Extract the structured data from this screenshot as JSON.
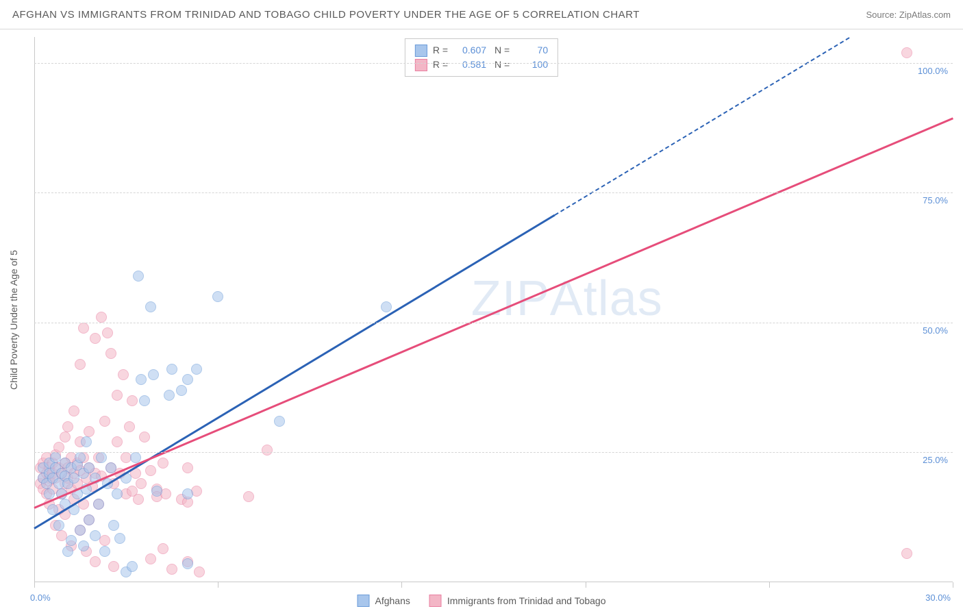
{
  "header": {
    "title": "AFGHAN VS IMMIGRANTS FROM TRINIDAD AND TOBAGO CHILD POVERTY UNDER THE AGE OF 5 CORRELATION CHART",
    "source": "Source: ZipAtlas.com"
  },
  "chart": {
    "type": "scatter",
    "ylabel": "Child Poverty Under the Age of 5",
    "watermark_a": "ZIP",
    "watermark_b": "Atlas",
    "xlim": [
      0,
      30
    ],
    "ylim": [
      0,
      105
    ],
    "x_ticks": [
      0,
      6,
      12,
      18,
      24,
      30
    ],
    "x_tick_labels": {
      "0": "0.0%",
      "30": "30.0%"
    },
    "y_gridlines": [
      25,
      50,
      75,
      100
    ],
    "y_tick_labels": {
      "25": "25.0%",
      "50": "50.0%",
      "75": "75.0%",
      "100": "100.0%"
    },
    "background_color": "#ffffff",
    "grid_color": "#d5d5d5",
    "axis_label_color": "#5b8fd6",
    "label_fontsize": 13,
    "series": [
      {
        "name": "Afghans",
        "fill": "#a8c6ec",
        "stroke": "#6a9bd8",
        "fill_opacity": 0.55,
        "marker_r": 7,
        "r_value": "0.607",
        "n_value": "70",
        "trend": {
          "color": "#2b62b5",
          "x0": 0,
          "y0": 10.5,
          "solid_until_x": 17,
          "slope": 3.55
        },
        "points": [
          [
            0.3,
            20
          ],
          [
            0.3,
            22
          ],
          [
            0.4,
            19
          ],
          [
            0.5,
            21
          ],
          [
            0.5,
            23
          ],
          [
            0.5,
            17
          ],
          [
            0.6,
            20
          ],
          [
            0.6,
            14
          ],
          [
            0.7,
            22
          ],
          [
            0.7,
            24
          ],
          [
            0.8,
            19
          ],
          [
            0.8,
            11
          ],
          [
            0.9,
            21
          ],
          [
            0.9,
            17
          ],
          [
            1.0,
            23
          ],
          [
            1.0,
            20.5
          ],
          [
            1.0,
            15
          ],
          [
            1.1,
            6
          ],
          [
            1.1,
            19
          ],
          [
            1.2,
            8
          ],
          [
            1.2,
            22
          ],
          [
            1.3,
            14
          ],
          [
            1.3,
            20
          ],
          [
            1.4,
            17
          ],
          [
            1.4,
            22.5
          ],
          [
            1.5,
            10
          ],
          [
            1.5,
            24
          ],
          [
            1.6,
            7
          ],
          [
            1.6,
            21
          ],
          [
            1.7,
            27
          ],
          [
            1.7,
            18
          ],
          [
            1.8,
            12
          ],
          [
            1.8,
            22
          ],
          [
            2.0,
            9
          ],
          [
            2.0,
            20
          ],
          [
            2.1,
            15
          ],
          [
            2.2,
            24
          ],
          [
            2.3,
            6
          ],
          [
            2.4,
            19
          ],
          [
            2.5,
            22
          ],
          [
            2.6,
            11
          ],
          [
            2.7,
            17
          ],
          [
            2.8,
            8.5
          ],
          [
            3.0,
            2
          ],
          [
            3.0,
            20
          ],
          [
            3.2,
            3
          ],
          [
            3.3,
            24
          ],
          [
            3.4,
            59
          ],
          [
            3.5,
            39
          ],
          [
            3.6,
            35
          ],
          [
            3.8,
            53
          ],
          [
            3.9,
            40
          ],
          [
            4.0,
            17.5
          ],
          [
            4.4,
            36
          ],
          [
            4.5,
            41
          ],
          [
            4.8,
            37
          ],
          [
            5.0,
            17
          ],
          [
            5.0,
            39
          ],
          [
            5.0,
            3.5
          ],
          [
            5.3,
            41
          ],
          [
            6.0,
            55
          ],
          [
            8.0,
            31
          ],
          [
            11.5,
            53
          ]
        ]
      },
      {
        "name": "Immigrants from Trinidad and Tobago",
        "fill": "#f3b6c6",
        "stroke": "#e97ea0",
        "fill_opacity": 0.55,
        "marker_r": 7,
        "r_value": "0.581",
        "n_value": "100",
        "trend": {
          "color": "#e64d7a",
          "x0": 0,
          "y0": 14.5,
          "solid_until_x": 30,
          "slope": 2.5
        },
        "points": [
          [
            0.2,
            19
          ],
          [
            0.2,
            22
          ],
          [
            0.3,
            20
          ],
          [
            0.3,
            18
          ],
          [
            0.3,
            23
          ],
          [
            0.4,
            21
          ],
          [
            0.4,
            17
          ],
          [
            0.4,
            24
          ],
          [
            0.5,
            20
          ],
          [
            0.5,
            22
          ],
          [
            0.5,
            15
          ],
          [
            0.5,
            19.5
          ],
          [
            0.6,
            23
          ],
          [
            0.6,
            18
          ],
          [
            0.6,
            21
          ],
          [
            0.7,
            24.5
          ],
          [
            0.7,
            11
          ],
          [
            0.7,
            20
          ],
          [
            0.8,
            22
          ],
          [
            0.8,
            14
          ],
          [
            0.8,
            26
          ],
          [
            0.9,
            21
          ],
          [
            0.9,
            17
          ],
          [
            0.9,
            9
          ],
          [
            1.0,
            19
          ],
          [
            1.0,
            23
          ],
          [
            1.0,
            28
          ],
          [
            1.0,
            13
          ],
          [
            1.1,
            22
          ],
          [
            1.1,
            20
          ],
          [
            1.1,
            30
          ],
          [
            1.2,
            18
          ],
          [
            1.2,
            7
          ],
          [
            1.2,
            24
          ],
          [
            1.3,
            21
          ],
          [
            1.3,
            16
          ],
          [
            1.3,
            33
          ],
          [
            1.4,
            23
          ],
          [
            1.4,
            19
          ],
          [
            1.5,
            10
          ],
          [
            1.5,
            27
          ],
          [
            1.5,
            42
          ],
          [
            1.5,
            21.5
          ],
          [
            1.6,
            15
          ],
          [
            1.6,
            24
          ],
          [
            1.6,
            49
          ],
          [
            1.7,
            20
          ],
          [
            1.7,
            6
          ],
          [
            1.8,
            22
          ],
          [
            1.8,
            29
          ],
          [
            1.8,
            12
          ],
          [
            1.9,
            18.5
          ],
          [
            2.0,
            21
          ],
          [
            2.0,
            47
          ],
          [
            2.0,
            4
          ],
          [
            2.1,
            24
          ],
          [
            2.1,
            15
          ],
          [
            2.2,
            20.5
          ],
          [
            2.2,
            51
          ],
          [
            2.3,
            31
          ],
          [
            2.3,
            8
          ],
          [
            2.4,
            48
          ],
          [
            2.5,
            44
          ],
          [
            2.5,
            22
          ],
          [
            2.6,
            3
          ],
          [
            2.6,
            19
          ],
          [
            2.7,
            36
          ],
          [
            2.7,
            27
          ],
          [
            2.8,
            21
          ],
          [
            2.9,
            40
          ],
          [
            3.0,
            17
          ],
          [
            3.0,
            24
          ],
          [
            3.1,
            30
          ],
          [
            3.2,
            17.5
          ],
          [
            3.2,
            35
          ],
          [
            3.3,
            21
          ],
          [
            3.4,
            16
          ],
          [
            3.5,
            19
          ],
          [
            3.6,
            28
          ],
          [
            3.8,
            4.5
          ],
          [
            3.8,
            21.5
          ],
          [
            4.0,
            18
          ],
          [
            4.0,
            16.5
          ],
          [
            4.2,
            23
          ],
          [
            4.2,
            6.5
          ],
          [
            4.3,
            17
          ],
          [
            4.5,
            2.5
          ],
          [
            4.8,
            16
          ],
          [
            5.0,
            15.5
          ],
          [
            5.0,
            22
          ],
          [
            5.0,
            4
          ],
          [
            5.3,
            17.5
          ],
          [
            5.4,
            2
          ],
          [
            7.0,
            16.5
          ],
          [
            7.6,
            25.5
          ],
          [
            28.5,
            102
          ],
          [
            28.5,
            5.5
          ]
        ]
      }
    ]
  }
}
